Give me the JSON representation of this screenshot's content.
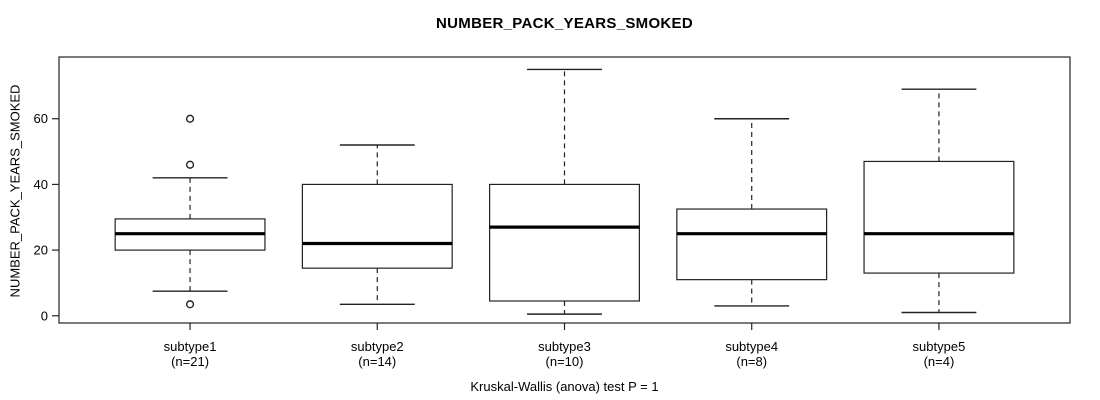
{
  "chart_data": {
    "type": "box",
    "title": "NUMBER_PACK_YEARS_SMOKED",
    "ylabel": "NUMBER_PACK_YEARS_SMOKED",
    "xlabel": "",
    "footer": "Kruskal-Wallis (anova) test P = 1",
    "grid": false,
    "legend": null,
    "yticks": [
      0,
      20,
      40,
      60
    ],
    "ylim": [
      -2.2,
      78.8
    ],
    "categories": [
      "subtype1",
      "subtype2",
      "subtype3",
      "subtype4",
      "subtype5"
    ],
    "n_labels": [
      "(n=21)",
      "(n=14)",
      "(n=10)",
      "(n=8)",
      "(n=4)"
    ],
    "series": [
      {
        "name": "subtype1",
        "n": 21,
        "whisker_low": 7.5,
        "q1": 20,
        "median": 25,
        "q3": 29.5,
        "whisker_high": 42,
        "outliers": [
          60,
          46,
          3.5
        ]
      },
      {
        "name": "subtype2",
        "n": 14,
        "whisker_low": 3.5,
        "q1": 14.5,
        "median": 22,
        "q3": 40,
        "whisker_high": 52,
        "outliers": []
      },
      {
        "name": "subtype3",
        "n": 10,
        "whisker_low": 0.5,
        "q1": 4.5,
        "median": 27,
        "q3": 40,
        "whisker_high": 75,
        "outliers": []
      },
      {
        "name": "subtype4",
        "n": 8,
        "whisker_low": 3,
        "q1": 11,
        "median": 25,
        "q3": 32.5,
        "whisker_high": 60,
        "outliers": []
      },
      {
        "name": "subtype5",
        "n": 4,
        "whisker_low": 1,
        "q1": 13,
        "median": 25,
        "q3": 47,
        "whisker_high": 69,
        "outliers": []
      }
    ],
    "colors": {
      "stroke": "#222222",
      "median": "#000000",
      "box_fill": "#ffffff",
      "background": "#ffffff"
    }
  }
}
